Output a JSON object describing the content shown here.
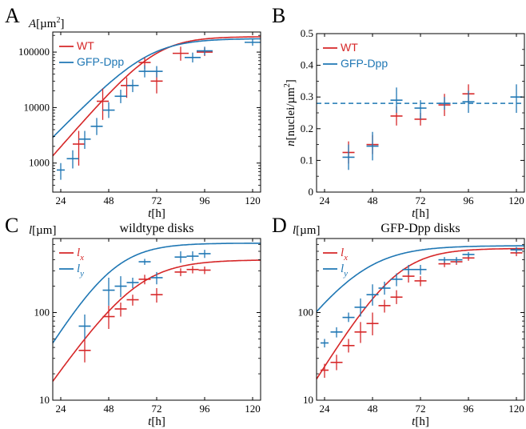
{
  "colors": {
    "wt": "#d62728",
    "dpp": "#1f77b4"
  },
  "chart_data": [
    {
      "panel": "A",
      "type": "scatter",
      "x_scale": "linear",
      "y_scale": "log",
      "xlim": [
        20,
        124
      ],
      "ylim": [
        300,
        230000
      ],
      "xticks": [
        24,
        48,
        72,
        96,
        120
      ],
      "yticks": [
        1000,
        10000,
        100000
      ],
      "ytick_labels": [
        "1000",
        "10000",
        "100000"
      ],
      "xlabel_main": "t",
      "xlabel_unit": "[h]",
      "ylabel_main": "A",
      "ylabel_unit": "[µm",
      "ylabel_sup": "2",
      "ylabel_close": "]",
      "title": "",
      "grid": false,
      "legend_position": "top-left",
      "series": [
        {
          "name": "WT",
          "color_key": "wt",
          "points": [
            {
              "x": 33,
              "y": 2200,
              "xerr": 3,
              "ylo": 900,
              "yhi": 3800
            },
            {
              "x": 45,
              "y": 13000,
              "xerr": 3,
              "ylo": 6000,
              "yhi": 22000
            },
            {
              "x": 57,
              "y": 25000,
              "xerr": 3,
              "ylo": 15000,
              "yhi": 35000
            },
            {
              "x": 66,
              "y": 65000,
              "xerr": 3,
              "ylo": 50000,
              "yhi": 80000
            },
            {
              "x": 72,
              "y": 30000,
              "xerr": 3,
              "ylo": 18000,
              "yhi": 45000
            },
            {
              "x": 84,
              "y": 95000,
              "xerr": 4,
              "ylo": 70000,
              "yhi": 125000
            },
            {
              "x": 96,
              "y": 100000,
              "xerr": 4,
              "ylo": 85000,
              "yhi": 120000
            }
          ],
          "fit": {
            "kind": "logistic",
            "K": 190000,
            "r": 0.095,
            "t0": 72
          }
        },
        {
          "name": "GFP-Dpp",
          "color_key": "dpp",
          "points": [
            {
              "x": 24,
              "y": 750,
              "xerr": 2,
              "ylo": 500,
              "yhi": 1000
            },
            {
              "x": 30,
              "y": 1200,
              "xerr": 3,
              "ylo": 800,
              "yhi": 1700
            },
            {
              "x": 36,
              "y": 2700,
              "xerr": 3,
              "ylo": 1800,
              "yhi": 3800
            },
            {
              "x": 42,
              "y": 4600,
              "xerr": 3,
              "ylo": 3200,
              "yhi": 6500
            },
            {
              "x": 48,
              "y": 9000,
              "xerr": 3,
              "ylo": 6500,
              "yhi": 12500
            },
            {
              "x": 54,
              "y": 16000,
              "xerr": 3,
              "ylo": 12000,
              "yhi": 21000
            },
            {
              "x": 60,
              "y": 25000,
              "xerr": 3,
              "ylo": 19000,
              "yhi": 32000
            },
            {
              "x": 66,
              "y": 45000,
              "xerr": 3,
              "ylo": 35000,
              "yhi": 58000
            },
            {
              "x": 72,
              "y": 45000,
              "xerr": 3,
              "ylo": 35000,
              "yhi": 56000
            },
            {
              "x": 90,
              "y": 80000,
              "xerr": 4,
              "ylo": 65000,
              "yhi": 98000
            },
            {
              "x": 96,
              "y": 105000,
              "xerr": 4,
              "ylo": 88000,
              "yhi": 125000
            },
            {
              "x": 120,
              "y": 150000,
              "xerr": 4,
              "ylo": 130000,
              "yhi": 175000
            }
          ],
          "fit": {
            "kind": "logistic",
            "K": 175000,
            "r": 0.085,
            "t0": 68
          }
        }
      ]
    },
    {
      "panel": "B",
      "type": "scatter",
      "x_scale": "linear",
      "y_scale": "linear",
      "xlim": [
        20,
        124
      ],
      "ylim": [
        0,
        0.5
      ],
      "xticks": [
        24,
        48,
        72,
        96,
        120
      ],
      "yticks": [
        0,
        0.1,
        0.2,
        0.3,
        0.4,
        0.5
      ],
      "ytick_labels": [
        "0",
        "0.1",
        "0.2",
        "0.3",
        "0.4",
        "0.5"
      ],
      "xlabel_main": "t",
      "xlabel_unit": "[h]",
      "ylabel_main": "n",
      "ylabel_unit": "[nuclei/µm",
      "ylabel_sup": "2",
      "ylabel_close": "]",
      "title": "",
      "grid": false,
      "legend_position": "top-left",
      "reference_line": {
        "y": 0.28,
        "color_key": "dpp",
        "style": "dashed"
      },
      "series": [
        {
          "name": "WT",
          "color_key": "wt",
          "points": [
            {
              "x": 36,
              "y": 0.125,
              "xerr": 3,
              "ylo": 0.09,
              "yhi": 0.16
            },
            {
              "x": 48,
              "y": 0.15,
              "xerr": 3,
              "ylo": 0.12,
              "yhi": 0.18
            },
            {
              "x": 60,
              "y": 0.24,
              "xerr": 3,
              "ylo": 0.21,
              "yhi": 0.27
            },
            {
              "x": 72,
              "y": 0.23,
              "xerr": 3,
              "ylo": 0.21,
              "yhi": 0.25
            },
            {
              "x": 84,
              "y": 0.275,
              "xerr": 3,
              "ylo": 0.24,
              "yhi": 0.31
            },
            {
              "x": 96,
              "y": 0.31,
              "xerr": 3,
              "ylo": 0.28,
              "yhi": 0.34
            }
          ]
        },
        {
          "name": "GFP-Dpp",
          "color_key": "dpp",
          "points": [
            {
              "x": 36,
              "y": 0.11,
              "xerr": 3,
              "ylo": 0.07,
              "yhi": 0.15
            },
            {
              "x": 48,
              "y": 0.145,
              "xerr": 3,
              "ylo": 0.1,
              "yhi": 0.19
            },
            {
              "x": 60,
              "y": 0.29,
              "xerr": 3,
              "ylo": 0.25,
              "yhi": 0.33
            },
            {
              "x": 72,
              "y": 0.265,
              "xerr": 3,
              "ylo": 0.23,
              "yhi": 0.29
            },
            {
              "x": 84,
              "y": 0.28,
              "xerr": 3,
              "ylo": 0.26,
              "yhi": 0.3
            },
            {
              "x": 96,
              "y": 0.285,
              "xerr": 3,
              "ylo": 0.25,
              "yhi": 0.32
            },
            {
              "x": 120,
              "y": 0.3,
              "xerr": 3,
              "ylo": 0.25,
              "yhi": 0.34
            }
          ]
        }
      ]
    },
    {
      "panel": "C",
      "type": "scatter",
      "x_scale": "linear",
      "y_scale": "log",
      "xlim": [
        20,
        124
      ],
      "ylim": [
        10,
        700
      ],
      "xticks": [
        24,
        48,
        72,
        96,
        120
      ],
      "yticks": [
        10,
        100
      ],
      "ytick_labels": [
        "10",
        "100"
      ],
      "xlabel_main": "t",
      "xlabel_unit": "[h]",
      "ylabel_main": "l",
      "ylabel_unit": "[µm]",
      "ylabel_sup": "",
      "ylabel_close": "",
      "title": "wildtype disks",
      "grid": false,
      "legend_position": "top-left",
      "series": [
        {
          "name": "l",
          "sub": "x",
          "color_key": "wt",
          "points": [
            {
              "x": 36,
              "y": 37,
              "xerr": 3,
              "ylo": 27,
              "yhi": 50
            },
            {
              "x": 48,
              "y": 90,
              "xerr": 3,
              "ylo": 65,
              "yhi": 120
            },
            {
              "x": 54,
              "y": 110,
              "xerr": 3,
              "ylo": 90,
              "yhi": 130
            },
            {
              "x": 60,
              "y": 140,
              "xerr": 3,
              "ylo": 120,
              "yhi": 160
            },
            {
              "x": 66,
              "y": 240,
              "xerr": 3,
              "ylo": 210,
              "yhi": 270
            },
            {
              "x": 72,
              "y": 160,
              "xerr": 3,
              "ylo": 130,
              "yhi": 190
            },
            {
              "x": 84,
              "y": 290,
              "xerr": 3,
              "ylo": 260,
              "yhi": 320
            },
            {
              "x": 90,
              "y": 310,
              "xerr": 3,
              "ylo": 280,
              "yhi": 340
            },
            {
              "x": 96,
              "y": 305,
              "xerr": 3,
              "ylo": 275,
              "yhi": 335
            }
          ],
          "fit": {
            "kind": "logistic",
            "K": 400,
            "r": 0.075,
            "t0": 62
          }
        },
        {
          "name": "l",
          "sub": "y",
          "color_key": "dpp",
          "points": [
            {
              "x": 36,
              "y": 70,
              "xerr": 3,
              "ylo": 50,
              "yhi": 95
            },
            {
              "x": 48,
              "y": 180,
              "xerr": 3,
              "ylo": 120,
              "yhi": 250
            },
            {
              "x": 54,
              "y": 200,
              "xerr": 3,
              "ylo": 150,
              "yhi": 260
            },
            {
              "x": 60,
              "y": 220,
              "xerr": 3,
              "ylo": 190,
              "yhi": 250
            },
            {
              "x": 66,
              "y": 380,
              "xerr": 3,
              "ylo": 350,
              "yhi": 410
            },
            {
              "x": 72,
              "y": 250,
              "xerr": 3,
              "ylo": 210,
              "yhi": 290
            },
            {
              "x": 84,
              "y": 430,
              "xerr": 3,
              "ylo": 370,
              "yhi": 500
            },
            {
              "x": 90,
              "y": 440,
              "xerr": 3,
              "ylo": 390,
              "yhi": 500
            },
            {
              "x": 96,
              "y": 470,
              "xerr": 3,
              "ylo": 420,
              "yhi": 520
            }
          ],
          "fit": {
            "kind": "logistic",
            "K": 620,
            "r": 0.085,
            "t0": 50
          }
        }
      ]
    },
    {
      "panel": "D",
      "type": "scatter",
      "x_scale": "linear",
      "y_scale": "log",
      "xlim": [
        20,
        124
      ],
      "ylim": [
        10,
        700
      ],
      "xticks": [
        24,
        48,
        72,
        96,
        120
      ],
      "yticks": [
        10,
        100
      ],
      "ytick_labels": [
        "10",
        "100"
      ],
      "xlabel_main": "t",
      "xlabel_unit": "[h]",
      "ylabel_main": "l",
      "ylabel_unit": "[µm]",
      "ylabel_sup": "",
      "ylabel_close": "",
      "title": "GFP-Dpp disks",
      "grid": false,
      "legend_position": "top-left",
      "series": [
        {
          "name": "l",
          "sub": "x",
          "color_key": "wt",
          "points": [
            {
              "x": 24,
              "y": 22,
              "xerr": 2,
              "ylo": 18,
              "yhi": 26
            },
            {
              "x": 30,
              "y": 27,
              "xerr": 3,
              "ylo": 22,
              "yhi": 33
            },
            {
              "x": 36,
              "y": 42,
              "xerr": 3,
              "ylo": 35,
              "yhi": 50
            },
            {
              "x": 42,
              "y": 60,
              "xerr": 3,
              "ylo": 45,
              "yhi": 78
            },
            {
              "x": 48,
              "y": 75,
              "xerr": 3,
              "ylo": 55,
              "yhi": 100
            },
            {
              "x": 54,
              "y": 120,
              "xerr": 3,
              "ylo": 100,
              "yhi": 140
            },
            {
              "x": 60,
              "y": 150,
              "xerr": 3,
              "ylo": 125,
              "yhi": 180
            },
            {
              "x": 66,
              "y": 260,
              "xerr": 3,
              "ylo": 220,
              "yhi": 300
            },
            {
              "x": 72,
              "y": 230,
              "xerr": 3,
              "ylo": 200,
              "yhi": 260
            },
            {
              "x": 84,
              "y": 360,
              "xerr": 3,
              "ylo": 330,
              "yhi": 390
            },
            {
              "x": 90,
              "y": 380,
              "xerr": 3,
              "ylo": 350,
              "yhi": 410
            },
            {
              "x": 96,
              "y": 420,
              "xerr": 3,
              "ylo": 390,
              "yhi": 450
            },
            {
              "x": 120,
              "y": 480,
              "xerr": 3,
              "ylo": 440,
              "yhi": 520
            }
          ],
          "fit": {
            "kind": "logistic",
            "K": 540,
            "r": 0.085,
            "t0": 60
          }
        },
        {
          "name": "l",
          "sub": "y",
          "color_key": "dpp",
          "points": [
            {
              "x": 24,
              "y": 45,
              "xerr": 2,
              "ylo": 40,
              "yhi": 50
            },
            {
              "x": 30,
              "y": 60,
              "xerr": 3,
              "ylo": 52,
              "yhi": 68
            },
            {
              "x": 36,
              "y": 88,
              "xerr": 3,
              "ylo": 78,
              "yhi": 100
            },
            {
              "x": 42,
              "y": 115,
              "xerr": 3,
              "ylo": 90,
              "yhi": 145
            },
            {
              "x": 48,
              "y": 160,
              "xerr": 3,
              "ylo": 120,
              "yhi": 210
            },
            {
              "x": 54,
              "y": 190,
              "xerr": 3,
              "ylo": 160,
              "yhi": 225
            },
            {
              "x": 60,
              "y": 240,
              "xerr": 3,
              "ylo": 200,
              "yhi": 280
            },
            {
              "x": 66,
              "y": 310,
              "xerr": 3,
              "ylo": 270,
              "yhi": 350
            },
            {
              "x": 72,
              "y": 310,
              "xerr": 3,
              "ylo": 270,
              "yhi": 350
            },
            {
              "x": 84,
              "y": 400,
              "xerr": 3,
              "ylo": 370,
              "yhi": 430
            },
            {
              "x": 90,
              "y": 400,
              "xerr": 3,
              "ylo": 370,
              "yhi": 430
            },
            {
              "x": 96,
              "y": 460,
              "xerr": 3,
              "ylo": 430,
              "yhi": 490
            },
            {
              "x": 120,
              "y": 520,
              "xerr": 3,
              "ylo": 480,
              "yhi": 560
            }
          ],
          "fit": {
            "kind": "logistic",
            "K": 580,
            "r": 0.07,
            "t0": 42
          }
        }
      ]
    }
  ]
}
